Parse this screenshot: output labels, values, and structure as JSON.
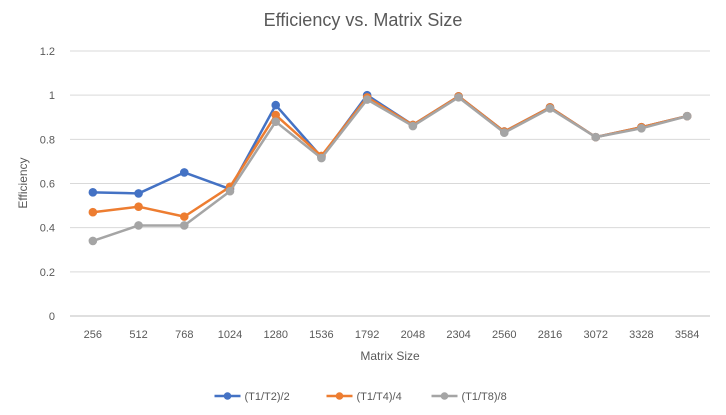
{
  "chart_data": {
    "type": "line",
    "title": "Efficiency vs. Matrix Size",
    "xlabel": "Matrix Size",
    "ylabel": "Efficiency",
    "categories": [
      "256",
      "512",
      "768",
      "1024",
      "1280",
      "1536",
      "1792",
      "2048",
      "2304",
      "2560",
      "2816",
      "3072",
      "3328",
      "3584"
    ],
    "ylim": [
      0,
      1.2
    ],
    "yticks": [
      "0",
      "0.2",
      "0.4",
      "0.6",
      "0.8",
      "1",
      "1.2"
    ],
    "grid": true,
    "legend_position": "bottom",
    "series": [
      {
        "name": "(T1/T2)/2",
        "color": "#4472C4",
        "values": [
          0.56,
          0.555,
          0.65,
          0.575,
          0.955,
          0.72,
          1.0,
          0.865,
          0.995,
          0.835,
          0.945,
          0.81,
          0.855,
          0.905
        ]
      },
      {
        "name": "(T1/T4)/4",
        "color": "#ED7D31",
        "values": [
          0.47,
          0.495,
          0.45,
          0.585,
          0.91,
          0.725,
          0.99,
          0.865,
          0.995,
          0.835,
          0.945,
          0.81,
          0.855,
          0.905
        ]
      },
      {
        "name": "(T1/T8)/8",
        "color": "#A5A5A5",
        "values": [
          0.34,
          0.41,
          0.41,
          0.565,
          0.88,
          0.715,
          0.98,
          0.86,
          0.99,
          0.83,
          0.94,
          0.81,
          0.85,
          0.905
        ]
      }
    ]
  }
}
